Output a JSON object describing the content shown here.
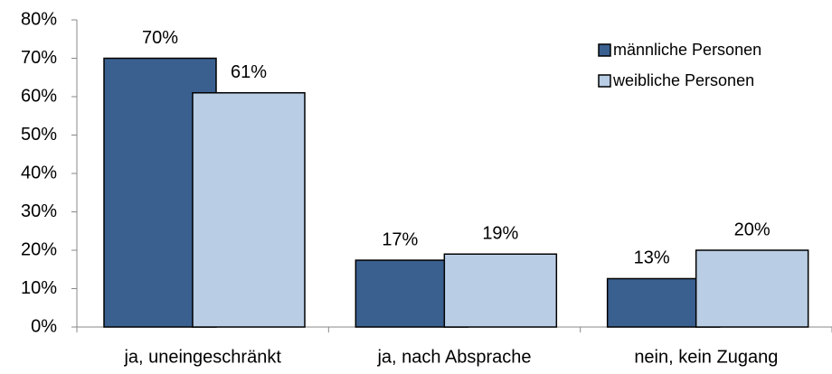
{
  "chart_data": {
    "type": "bar",
    "categories": [
      "ja, uneingeschränkt",
      "ja, nach Absprache",
      "nein, kein Zugang"
    ],
    "series": [
      {
        "name": "männliche Personen",
        "color": "#3a6090",
        "values": [
          70,
          17.4,
          12.6
        ],
        "value_labels": [
          "70%",
          "17%",
          "13%"
        ]
      },
      {
        "name": "weibliche Personen",
        "color": "#b9cde5",
        "values": [
          61,
          19,
          20
        ],
        "value_labels": [
          "61%",
          "19%",
          "20%"
        ]
      }
    ],
    "ylim": [
      0,
      80
    ],
    "yticks": [
      {
        "value": 0,
        "label": "0%"
      },
      {
        "value": 10,
        "label": "10%"
      },
      {
        "value": 20,
        "label": "20%"
      },
      {
        "value": 30,
        "label": "30%"
      },
      {
        "value": 40,
        "label": "40%"
      },
      {
        "value": 50,
        "label": "50%"
      },
      {
        "value": 60,
        "label": "60%"
      },
      {
        "value": 70,
        "label": "70%"
      },
      {
        "value": 80,
        "label": "80%"
      }
    ],
    "legend": "top-right"
  }
}
